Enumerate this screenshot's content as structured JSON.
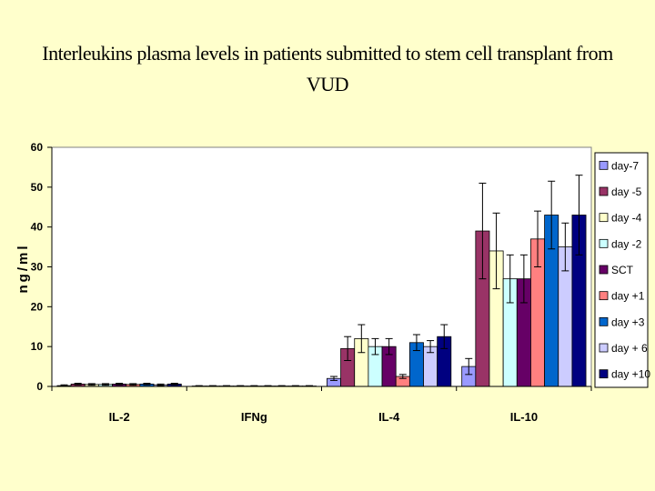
{
  "chart_data": {
    "type": "bar",
    "title": "Interleukins plasma levels in patients submitted to stem cell transplant from VUD",
    "ylabel": "ng/ml",
    "xlabel": "",
    "ylim": [
      0,
      60
    ],
    "yticks": [
      0,
      10,
      20,
      30,
      40,
      50,
      60
    ],
    "grid": false,
    "legend_position": "right",
    "categories": [
      "IL-2",
      "IFNg",
      "IL-4",
      "IL-10"
    ],
    "series": [
      {
        "name": "day-7",
        "color": "#9999ff",
        "values": [
          0.2,
          0.1,
          2.0,
          5.0
        ],
        "errors": [
          0.2,
          0.1,
          0.5,
          2.0
        ]
      },
      {
        "name": "day -5",
        "color": "#993366",
        "values": [
          0.6,
          0.1,
          9.5,
          39.0
        ],
        "errors": [
          0.2,
          0.1,
          3.0,
          12.0
        ]
      },
      {
        "name": "day -4",
        "color": "#ffffcc",
        "values": [
          0.5,
          0.1,
          12.0,
          34.0
        ],
        "errors": [
          0.2,
          0.1,
          3.5,
          9.5
        ]
      },
      {
        "name": "day -2",
        "color": "#ccffff",
        "values": [
          0.5,
          0.1,
          10.0,
          27.0
        ],
        "errors": [
          0.2,
          0.1,
          2.0,
          6.0
        ]
      },
      {
        "name": "SCT",
        "color": "#660066",
        "values": [
          0.6,
          0.1,
          10.0,
          27.0
        ],
        "errors": [
          0.2,
          0.1,
          2.0,
          6.0
        ]
      },
      {
        "name": "day +1",
        "color": "#ff8080",
        "values": [
          0.5,
          0.1,
          2.5,
          37.0
        ],
        "errors": [
          0.2,
          0.1,
          0.5,
          7.0
        ]
      },
      {
        "name": "day +3",
        "color": "#0066cc",
        "values": [
          0.6,
          0.1,
          11.0,
          43.0
        ],
        "errors": [
          0.2,
          0.1,
          2.0,
          8.5
        ]
      },
      {
        "name": "day + 6",
        "color": "#ccccff",
        "values": [
          0.4,
          0.1,
          10.0,
          35.0
        ],
        "errors": [
          0.2,
          0.1,
          1.5,
          6.0
        ]
      },
      {
        "name": "day +10",
        "color": "#000080",
        "values": [
          0.6,
          0.1,
          12.5,
          43.0
        ],
        "errors": [
          0.2,
          0.1,
          3.0,
          10.0
        ]
      }
    ]
  }
}
